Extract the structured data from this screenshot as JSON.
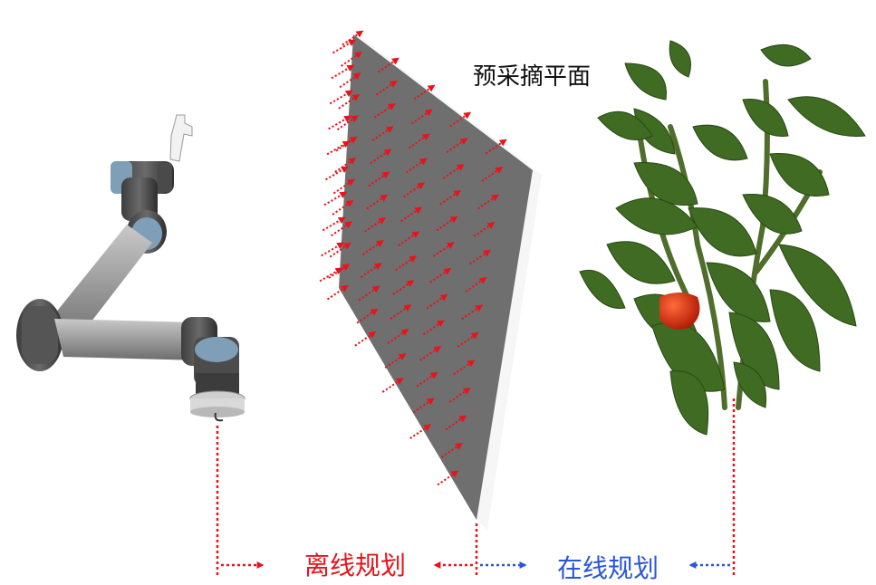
{
  "labels": {
    "picking_plane": "预采摘平面",
    "offline_planning": "离线规划",
    "online_planning": "在线规划"
  },
  "colors": {
    "offline_arrow": "#e8141b",
    "online_arrow": "#2a56d8",
    "plane_fill": "#6f6f6f",
    "robot_link": "#9a9a9a",
    "robot_joint_cap": "#7f9fb8",
    "leaf": "#3f6b22",
    "fruit": "#d42a0d"
  },
  "icons": [
    "robot-arm-icon",
    "plant-icon",
    "pepper-fruit-icon",
    "arrow-icon"
  ]
}
